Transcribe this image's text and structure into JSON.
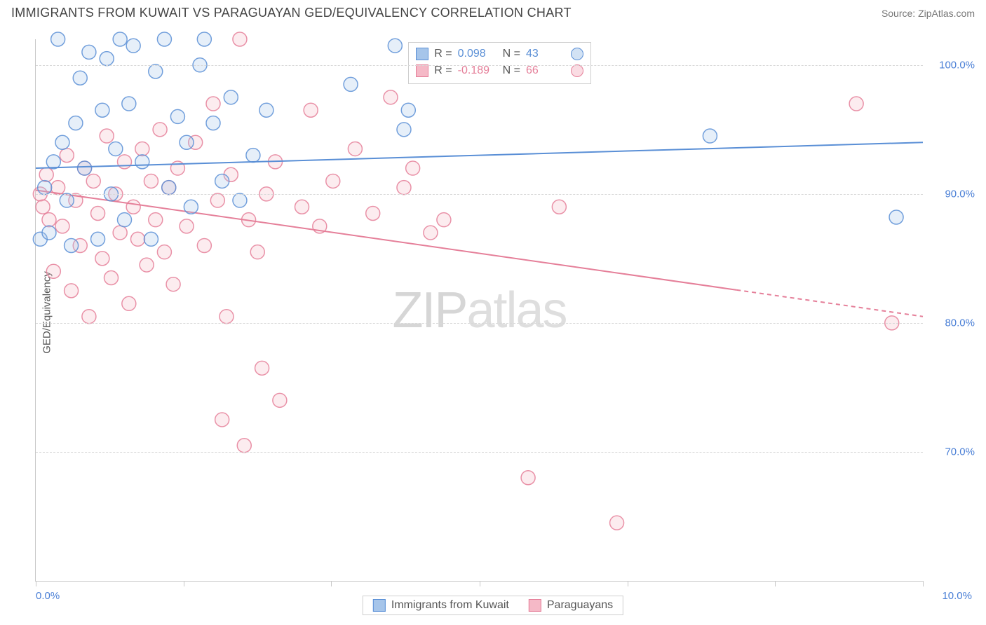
{
  "header": {
    "title": "IMMIGRANTS FROM KUWAIT VS PARAGUAYAN GED/EQUIVALENCY CORRELATION CHART",
    "source": "Source: ZipAtlas.com"
  },
  "chart": {
    "type": "scatter",
    "ylabel": "GED/Equivalency",
    "background_color": "#ffffff",
    "grid_color": "#d8d8d8",
    "axis_color": "#c8c8c8",
    "tick_label_color": "#4a7fd6",
    "label_color": "#555555",
    "title_fontsize": 18,
    "label_fontsize": 15,
    "tick_fontsize": 15,
    "marker_radius": 10,
    "marker_fill_opacity": 0.28,
    "marker_stroke_opacity": 0.85,
    "line_width": 2,
    "xlim": [
      0,
      10
    ],
    "ylim": [
      60,
      102
    ],
    "xticks": [
      0,
      1.67,
      3.33,
      5.0,
      6.67,
      8.33,
      10
    ],
    "xtick_labels_shown": {
      "0": "0.0%",
      "10": "10.0%"
    },
    "yticks": [
      70,
      80,
      90,
      100
    ],
    "ytick_labels": [
      "70.0%",
      "80.0%",
      "90.0%",
      "100.0%"
    ],
    "watermark": {
      "text_a": "ZIP",
      "text_b": "atlas",
      "color_a": "#d4d4d4",
      "color_b": "#dedede",
      "fontsize": 72
    }
  },
  "series": {
    "kuwait": {
      "label": "Immigrants from Kuwait",
      "color": "#5a8fd6",
      "fill": "#a6c5ea",
      "R": "0.098",
      "N": "43",
      "trend": {
        "y_at_x0": 92.0,
        "y_at_x10": 94.0,
        "solid_to_x": 10
      },
      "points": [
        [
          0.05,
          86.5
        ],
        [
          0.1,
          90.5
        ],
        [
          0.15,
          87.0
        ],
        [
          0.2,
          92.5
        ],
        [
          0.25,
          102
        ],
        [
          0.3,
          94.0
        ],
        [
          0.35,
          89.5
        ],
        [
          0.4,
          86.0
        ],
        [
          0.45,
          95.5
        ],
        [
          0.5,
          99.0
        ],
        [
          0.55,
          92.0
        ],
        [
          0.6,
          101
        ],
        [
          0.7,
          86.5
        ],
        [
          0.75,
          96.5
        ],
        [
          0.8,
          100.5
        ],
        [
          0.85,
          90.0
        ],
        [
          0.9,
          93.5
        ],
        [
          0.95,
          102
        ],
        [
          1.0,
          88.0
        ],
        [
          1.05,
          97.0
        ],
        [
          1.1,
          101.5
        ],
        [
          1.2,
          92.5
        ],
        [
          1.3,
          86.5
        ],
        [
          1.35,
          99.5
        ],
        [
          1.45,
          102
        ],
        [
          1.5,
          90.5
        ],
        [
          1.6,
          96.0
        ],
        [
          1.7,
          94.0
        ],
        [
          1.75,
          89.0
        ],
        [
          1.85,
          100.0
        ],
        [
          1.9,
          102
        ],
        [
          2.0,
          95.5
        ],
        [
          2.1,
          91.0
        ],
        [
          2.2,
          97.5
        ],
        [
          2.3,
          89.5
        ],
        [
          2.45,
          93.0
        ],
        [
          2.6,
          96.5
        ],
        [
          3.55,
          98.5
        ],
        [
          4.05,
          101.5
        ],
        [
          4.15,
          95.0
        ],
        [
          4.2,
          96.5
        ],
        [
          7.6,
          94.5
        ],
        [
          9.7,
          88.2
        ]
      ]
    },
    "paraguay": {
      "label": "Paraguayans",
      "color": "#e57f99",
      "fill": "#f5b9c7",
      "R": "-0.189",
      "N": "66",
      "trend": {
        "y_at_x0": 90.3,
        "y_at_x10": 80.5,
        "solid_to_x": 7.9
      },
      "points": [
        [
          0.05,
          90.0
        ],
        [
          0.08,
          89.0
        ],
        [
          0.12,
          91.5
        ],
        [
          0.15,
          88.0
        ],
        [
          0.2,
          84.0
        ],
        [
          0.25,
          90.5
        ],
        [
          0.3,
          87.5
        ],
        [
          0.35,
          93.0
        ],
        [
          0.4,
          82.5
        ],
        [
          0.45,
          89.5
        ],
        [
          0.5,
          86.0
        ],
        [
          0.55,
          92.0
        ],
        [
          0.6,
          80.5
        ],
        [
          0.65,
          91.0
        ],
        [
          0.7,
          88.5
        ],
        [
          0.75,
          85.0
        ],
        [
          0.8,
          94.5
        ],
        [
          0.85,
          83.5
        ],
        [
          0.9,
          90.0
        ],
        [
          0.95,
          87.0
        ],
        [
          1.0,
          92.5
        ],
        [
          1.05,
          81.5
        ],
        [
          1.1,
          89.0
        ],
        [
          1.15,
          86.5
        ],
        [
          1.2,
          93.5
        ],
        [
          1.25,
          84.5
        ],
        [
          1.3,
          91.0
        ],
        [
          1.35,
          88.0
        ],
        [
          1.4,
          95.0
        ],
        [
          1.45,
          85.5
        ],
        [
          1.5,
          90.5
        ],
        [
          1.55,
          83.0
        ],
        [
          1.6,
          92.0
        ],
        [
          1.7,
          87.5
        ],
        [
          1.8,
          94.0
        ],
        [
          1.9,
          86.0
        ],
        [
          2.0,
          97.0
        ],
        [
          2.05,
          89.5
        ],
        [
          2.1,
          72.5
        ],
        [
          2.15,
          80.5
        ],
        [
          2.2,
          91.5
        ],
        [
          2.3,
          102
        ],
        [
          2.35,
          70.5
        ],
        [
          2.4,
          88.0
        ],
        [
          2.5,
          85.5
        ],
        [
          2.55,
          76.5
        ],
        [
          2.6,
          90.0
        ],
        [
          2.7,
          92.5
        ],
        [
          2.75,
          74.0
        ],
        [
          3.0,
          89.0
        ],
        [
          3.1,
          96.5
        ],
        [
          3.2,
          87.5
        ],
        [
          3.35,
          91.0
        ],
        [
          3.6,
          93.5
        ],
        [
          3.8,
          88.5
        ],
        [
          4.0,
          97.5
        ],
        [
          4.15,
          90.5
        ],
        [
          4.25,
          92.0
        ],
        [
          4.35,
          101
        ],
        [
          4.45,
          87.0
        ],
        [
          4.6,
          88.0
        ],
        [
          5.55,
          68.0
        ],
        [
          5.9,
          89.0
        ],
        [
          6.55,
          64.5
        ],
        [
          9.25,
          97.0
        ],
        [
          9.65,
          80.0
        ]
      ]
    }
  },
  "stats_box": {
    "r_label": "R  =",
    "n_label": "N  ="
  },
  "legend": {
    "items": [
      "kuwait",
      "paraguay"
    ]
  }
}
